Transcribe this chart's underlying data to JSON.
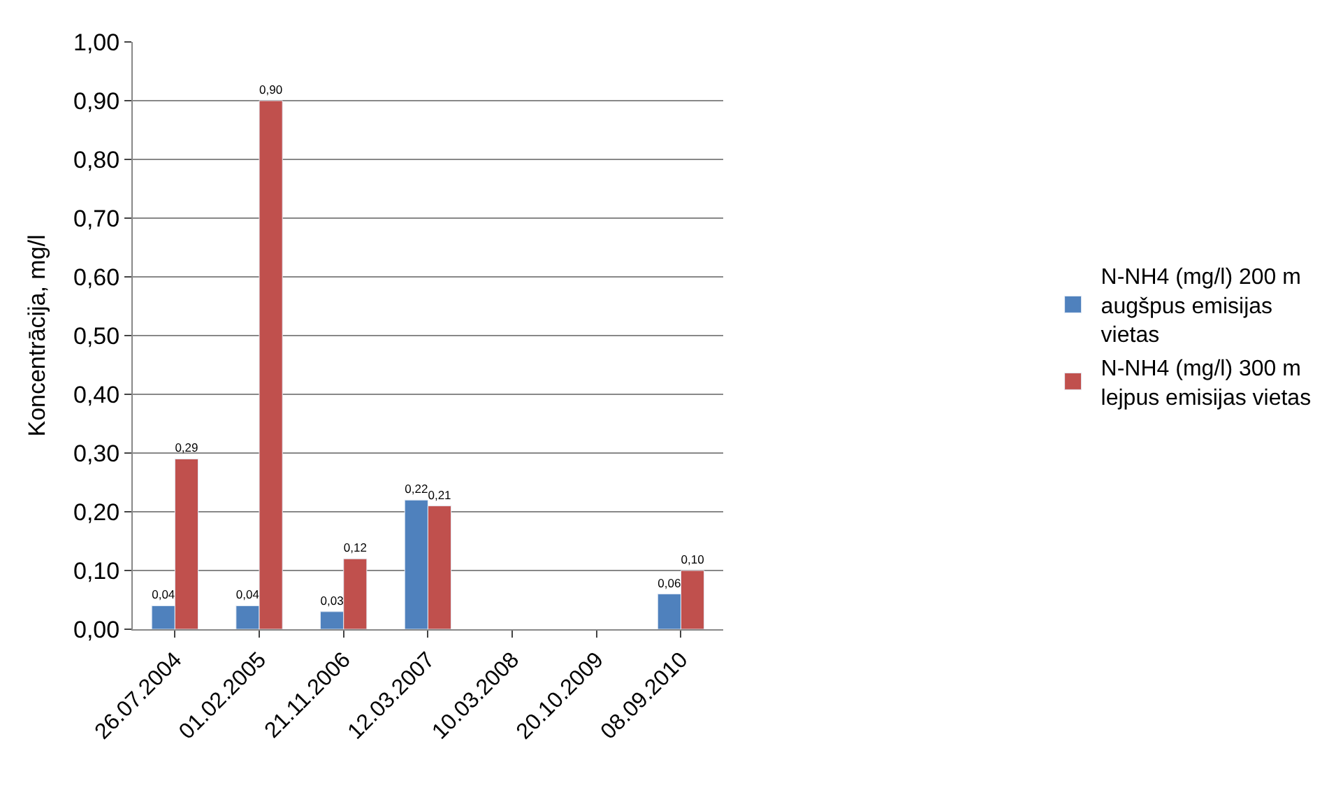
{
  "chart_data": {
    "type": "bar",
    "ylabel": "Koncentrācija, mg/l",
    "categories": [
      "26.07.2004",
      "01.02.2005",
      "21.11.2006",
      "12.03.2007",
      "10.03.2008",
      "20.10.2009",
      "08.09.2010"
    ],
    "series": [
      {
        "name": "N-NH4 (mg/l) 200 m augšpus emisijas vietas",
        "color": "#4f81bd",
        "values": [
          0.04,
          0.04,
          0.03,
          0.22,
          null,
          null,
          0.06
        ],
        "value_labels": [
          "0,04",
          "0,04",
          "0,03",
          "0,22",
          null,
          null,
          "0,06"
        ]
      },
      {
        "name": "N-NH4 (mg/l) 300 m lejpus emisijas vietas",
        "color": "#c0504d",
        "values": [
          0.29,
          0.9,
          0.12,
          0.21,
          null,
          null,
          0.1
        ],
        "value_labels": [
          "0,29",
          "0,90",
          "0,12",
          "0,21",
          null,
          null,
          "0,10"
        ]
      }
    ],
    "ylim": [
      0,
      1
    ],
    "yticks": [
      {
        "value": 0,
        "label": "0,00"
      },
      {
        "value": 0.1,
        "label": "0,10"
      },
      {
        "value": 0.2,
        "label": "0,20"
      },
      {
        "value": 0.3,
        "label": "0,30"
      },
      {
        "value": 0.4,
        "label": "0,40"
      },
      {
        "value": 0.5,
        "label": "0,50"
      },
      {
        "value": 0.6,
        "label": "0,60"
      },
      {
        "value": 0.7,
        "label": "0,70"
      },
      {
        "value": 0.8,
        "label": "0,80"
      },
      {
        "value": 0.9,
        "label": "0,90"
      },
      {
        "value": 1,
        "label": "1,00"
      }
    ],
    "grid": "y",
    "legend": "right"
  }
}
